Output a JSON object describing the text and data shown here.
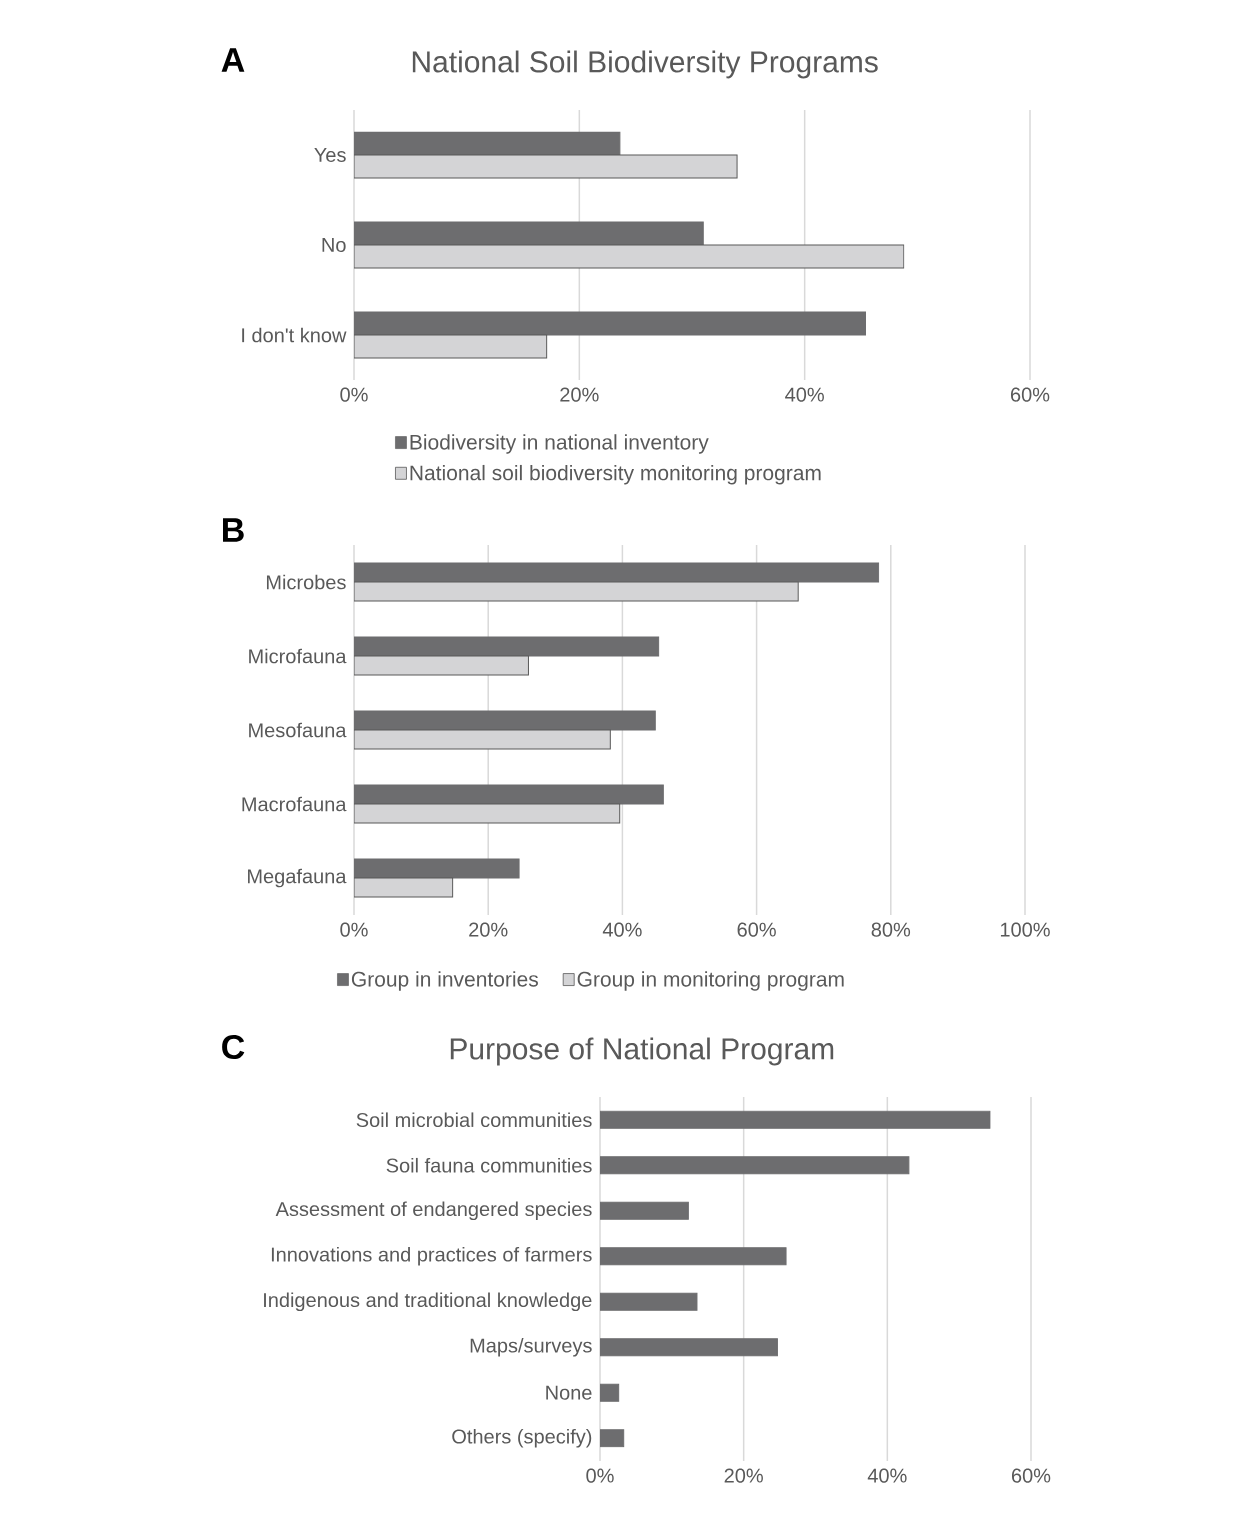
{
  "chart_data": [
    {
      "type": "bar",
      "orientation": "horizontal",
      "title": "National Soil Biodiversity Programs",
      "categories": [
        "Yes",
        "No",
        "I don't know"
      ],
      "series": [
        {
          "name": "Biodiversity in national inventory",
          "color": "#6d6d6f",
          "values": [
            23.6,
            31.0,
            45.4
          ]
        },
        {
          "name": "National soil biodiversity monitoring program",
          "color": "#d4d4d6",
          "values": [
            34.0,
            48.8,
            17.1
          ]
        }
      ],
      "xlim": [
        0,
        60
      ],
      "xticks": [
        {
          "value": 0,
          "label": "0%"
        },
        {
          "value": 20,
          "label": "20%"
        },
        {
          "value": 40,
          "label": "40%"
        },
        {
          "value": 60,
          "label": "60%"
        }
      ],
      "grid": "x",
      "legend": "bottom",
      "annotations": [
        "A"
      ]
    },
    {
      "type": "bar",
      "orientation": "horizontal",
      "categories": [
        "Microbes",
        "Microfauna",
        "Mesofauna",
        "Macrofauna",
        "Megafauna"
      ],
      "series": [
        {
          "name": "Group in inventories",
          "color": "#6d6d6f",
          "values": [
            78.2,
            45.4,
            44.9,
            46.1,
            24.6
          ]
        },
        {
          "name": "Group in monitoring program",
          "color": "#d4d4d6",
          "values": [
            66.2,
            26.0,
            38.2,
            39.6,
            14.7
          ]
        }
      ],
      "xlim": [
        0,
        100
      ],
      "xticks": [
        {
          "value": 0,
          "label": "0%"
        },
        {
          "value": 20,
          "label": "20%"
        },
        {
          "value": 40,
          "label": "40%"
        },
        {
          "value": 60,
          "label": "60%"
        },
        {
          "value": 80,
          "label": "80%"
        },
        {
          "value": 100,
          "label": "100%"
        }
      ],
      "grid": "x",
      "legend": "bottom",
      "annotations": [
        "B"
      ]
    },
    {
      "type": "bar",
      "orientation": "horizontal",
      "title": "Purpose of National Program",
      "categories": [
        "Soil microbial communities",
        "Soil fauna communities",
        "Assessment of endangered species",
        "Innovations and practices of farmers",
        "Indigenous and traditional knowledge",
        "Maps/surveys",
        "None",
        "Others (specify)"
      ],
      "series": [
        {
          "color": "#6d6d6f",
          "values": [
            54.3,
            43.0,
            12.3,
            25.9,
            13.5,
            24.7,
            2.6,
            3.3
          ]
        }
      ],
      "xlim": [
        0,
        60
      ],
      "xticks": [
        {
          "value": 0,
          "label": "0%"
        },
        {
          "value": 20,
          "label": "20%"
        },
        {
          "value": 40,
          "label": "40%"
        },
        {
          "value": 60,
          "label": "60%"
        }
      ],
      "grid": "x",
      "annotations": [
        "C"
      ]
    }
  ]
}
